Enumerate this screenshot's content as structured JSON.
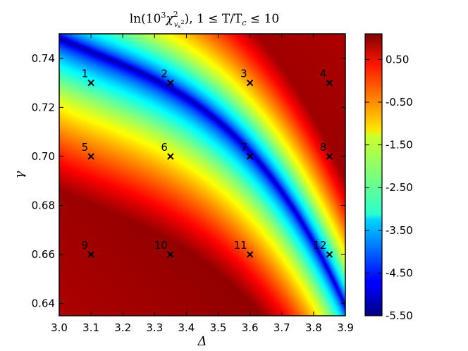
{
  "chart_data": {
    "type": "heatmap",
    "title": "ln(10³χ²_{v_s²}), 1 ≤ T/T_c ≤ 10",
    "title_parts": {
      "func": "ln(10",
      "exp3": "3",
      "chi": "χ",
      "chi_sup": "2",
      "chi_sub": "v",
      "chi_sub_sub": "s",
      "chi_sub_sup": "2",
      "rest": "), 1 ≤ T/T",
      "tc_sub": "c",
      "tail": " ≤ 10"
    },
    "xlabel": "Δ",
    "ylabel": "γ",
    "xlim": [
      3.0,
      3.9
    ],
    "ylim": [
      0.635,
      0.75
    ],
    "x_ticks": [
      "3.0",
      "3.1",
      "3.2",
      "3.3",
      "3.4",
      "3.5",
      "3.6",
      "3.7",
      "3.8",
      "3.9"
    ],
    "x_tick_values": [
      3.0,
      3.1,
      3.2,
      3.3,
      3.4,
      3.5,
      3.6,
      3.7,
      3.8,
      3.9
    ],
    "y_ticks": [
      "0.64",
      "0.66",
      "0.68",
      "0.70",
      "0.72",
      "0.74"
    ],
    "y_tick_values": [
      0.64,
      0.66,
      0.68,
      0.7,
      0.72,
      0.74
    ],
    "colorbar": {
      "range": [
        -5.5,
        1.1
      ],
      "ticks": [
        "0.50",
        "-0.50",
        "-1.50",
        "-2.50",
        "-3.50",
        "-4.50",
        "-5.50"
      ],
      "tick_values": [
        0.5,
        -0.5,
        -1.5,
        -2.5,
        -3.5,
        -4.5,
        -5.5
      ],
      "colormap": "jet"
    },
    "valley": [
      {
        "x": 3.0,
        "y": 0.7485
      },
      {
        "x": 3.3,
        "y": 0.7315
      },
      {
        "x": 3.6,
        "y": 0.702
      },
      {
        "x": 3.9,
        "y": 0.639
      }
    ],
    "points": [
      {
        "label": "1",
        "x": 3.1,
        "y": 0.73
      },
      {
        "label": "2",
        "x": 3.35,
        "y": 0.73
      },
      {
        "label": "3",
        "x": 3.6,
        "y": 0.73
      },
      {
        "label": "4",
        "x": 3.85,
        "y": 0.73
      },
      {
        "label": "5",
        "x": 3.1,
        "y": 0.7
      },
      {
        "label": "6",
        "x": 3.35,
        "y": 0.7
      },
      {
        "label": "7",
        "x": 3.6,
        "y": 0.7
      },
      {
        "label": "8",
        "x": 3.85,
        "y": 0.7
      },
      {
        "label": "9",
        "x": 3.1,
        "y": 0.66
      },
      {
        "label": "10",
        "x": 3.35,
        "y": 0.66
      },
      {
        "label": "11",
        "x": 3.6,
        "y": 0.66
      },
      {
        "label": "12",
        "x": 3.85,
        "y": 0.66
      }
    ],
    "grid": false,
    "legend": "none"
  }
}
